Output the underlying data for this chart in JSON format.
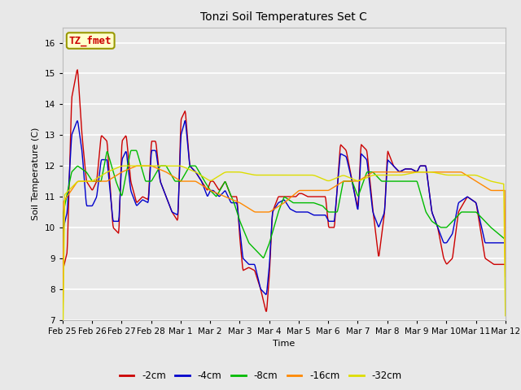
{
  "title": "Tonzi Soil Temperatures Set C",
  "xlabel": "Time",
  "ylabel": "Soil Temperature (C)",
  "ylim": [
    7.0,
    16.5
  ],
  "yticks": [
    7.0,
    8.0,
    9.0,
    10.0,
    11.0,
    12.0,
    13.0,
    14.0,
    15.0,
    16.0
  ],
  "bg_color": "#e8e8e8",
  "plot_bg_color": "#e8e8e8",
  "grid_color": "white",
  "line_colors": {
    "-2cm": "#cc0000",
    "-4cm": "#0000cc",
    "-8cm": "#00bb00",
    "-16cm": "#ff8800",
    "-32cm": "#dddd00"
  },
  "annotation_box": {
    "text": "TZ_fmet",
    "bg": "#ffffcc",
    "edge": "#999900",
    "text_color": "#cc0000",
    "fontsize": 9
  },
  "x_labels": [
    "Feb 25",
    "Feb 26",
    "Feb 27",
    "Feb 28",
    "Mar 1",
    "Mar 2",
    "Mar 3",
    "Mar 4",
    "Mar 5",
    "Mar 6",
    "Mar 7",
    "Mar 8",
    "Mar 9",
    "Mar 10",
    "Mar 11",
    "Mar 12"
  ],
  "legend_labels": [
    "-2cm",
    "-4cm",
    "-8cm",
    "-16cm",
    "-32cm"
  ]
}
